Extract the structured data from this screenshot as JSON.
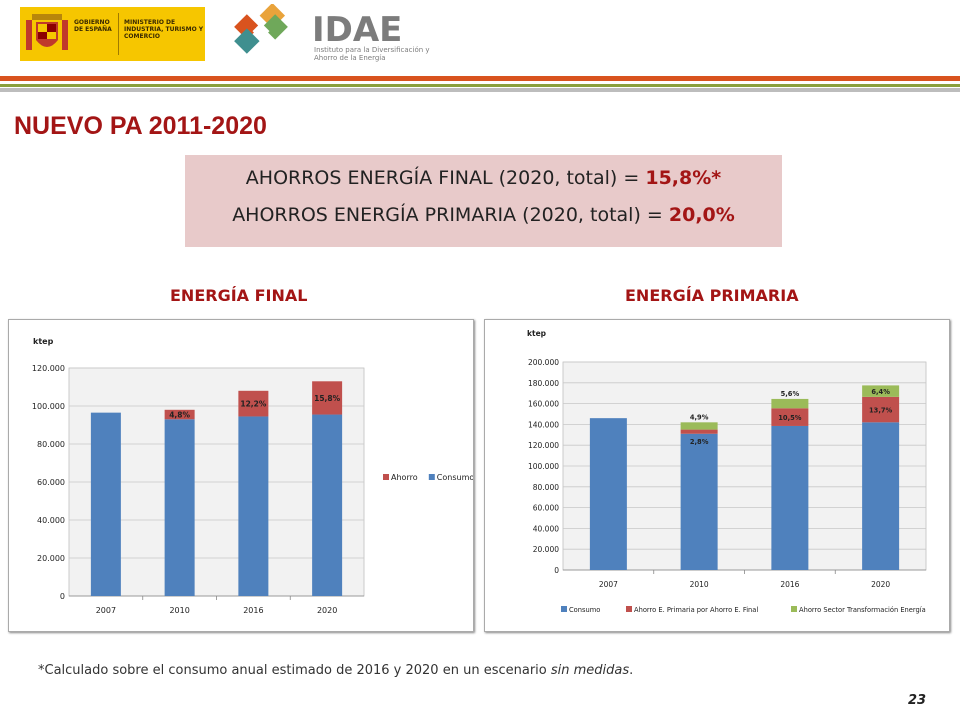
{
  "header": {
    "gov_text_1": "GOBIERNO DE ESPAÑA",
    "gov_text_2": "MINISTERIO DE INDUSTRIA, TURISMO Y COMERCIO",
    "brand_name": "IDAE",
    "brand_subtitle": "Instituto para la Diversificación y Ahorro de la Energía"
  },
  "title": "NUEVO PA 2011-2020",
  "savings": {
    "final_label": "AHORROS ENERGÍA FINAL (2020, total) = ",
    "final_value": "15,8%*",
    "primaria_label": "AHORROS ENERGÍA PRIMARIA (2020, total) = ",
    "primaria_value": "20,0%"
  },
  "sections": {
    "final": "ENERGÍA FINAL",
    "primaria": "ENERGÍA PRIMARIA"
  },
  "chart_data": [
    {
      "type": "bar",
      "stacked": true,
      "ylabel": "ktep",
      "categories": [
        "2007",
        "2010",
        "2016",
        "2020"
      ],
      "ylim": [
        0,
        120000
      ],
      "yticks": [
        "0",
        "20.000",
        "40.000",
        "60.000",
        "80.000",
        "100.000",
        "120.000"
      ],
      "legend_position": "right",
      "series": [
        {
          "name": "Consumo",
          "values": [
            96500,
            93000,
            94500,
            95500
          ]
        },
        {
          "name": "Ahorro",
          "values": [
            0,
            5000,
            13500,
            17500
          ]
        }
      ],
      "data_labels": [
        "",
        "4,8%",
        "12,2%",
        "15,8%"
      ],
      "colors": {
        "Consumo": "#4f81bd",
        "Ahorro": "#c0504d"
      }
    },
    {
      "type": "bar",
      "stacked": true,
      "ylabel": "ktep",
      "categories": [
        "2007",
        "2010",
        "2016",
        "2020"
      ],
      "ylim": [
        0,
        200000
      ],
      "yticks": [
        "0",
        "20.000",
        "40.000",
        "60.000",
        "80.000",
        "100.000",
        "120.000",
        "140.000",
        "160.000",
        "180.000",
        "200.000"
      ],
      "legend_position": "bottom",
      "series": [
        {
          "name": "Consumo",
          "values": [
            146000,
            131000,
            138500,
            142000
          ]
        },
        {
          "name": "Ahorro E. Primaria por Ahorro E. Final",
          "values": [
            0,
            4000,
            17000,
            24500
          ]
        },
        {
          "name": "Ahorro Sector Transformación Energía",
          "values": [
            0,
            7000,
            9000,
            11000
          ]
        }
      ],
      "data_labels_mid": [
        "",
        "2,8%",
        "10,5%",
        "13,7%"
      ],
      "data_labels_top": [
        "",
        "4,9%",
        "5,6%",
        "6,4%"
      ],
      "colors": {
        "Consumo": "#4f81bd",
        "Ahorro E. Primaria por Ahorro E. Final": "#c0504d",
        "Ahorro Sector Transformación Energía": "#9bbb59"
      }
    }
  ],
  "footnote": {
    "text": "*Calculado sobre el consumo anual estimado de 2016 y 2020 en un escenario ",
    "italic": "sin medidas",
    "end": "."
  },
  "page_number": "23"
}
